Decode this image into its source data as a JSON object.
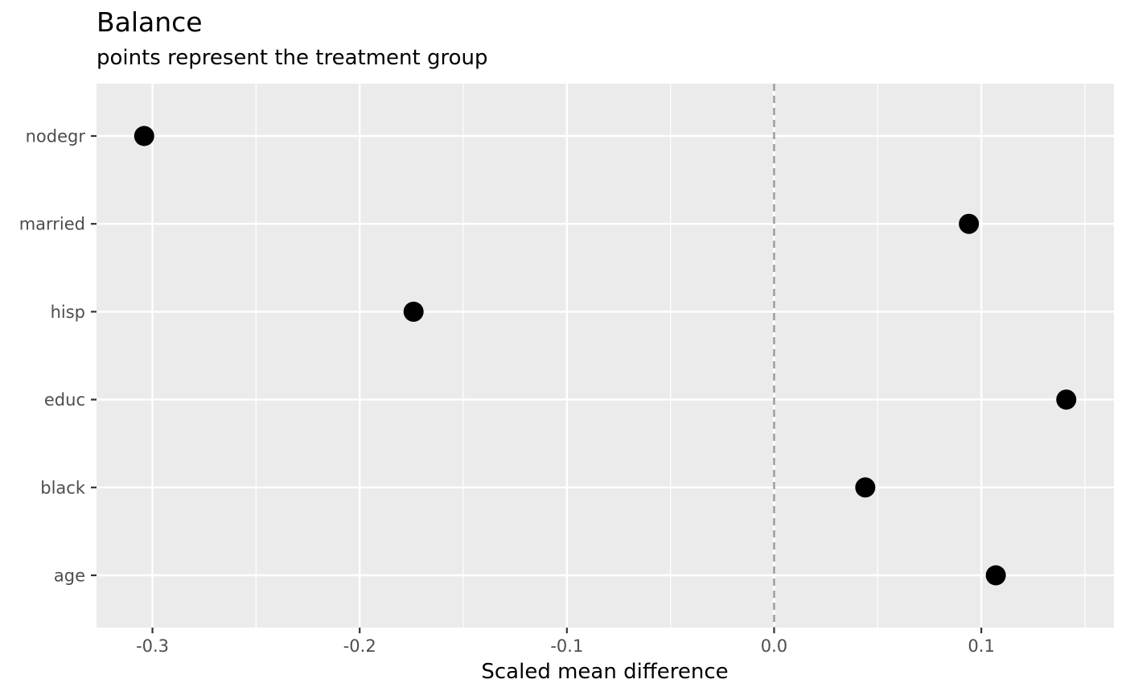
{
  "chart_data": {
    "type": "scatter",
    "title": "Balance",
    "subtitle": "points represent the treatment group",
    "xlabel": "Scaled mean difference",
    "ylabel": "",
    "xlim": [
      -0.327,
      0.164
    ],
    "x_ticks": [
      -0.3,
      -0.2,
      -0.1,
      0.0,
      0.1
    ],
    "x_tick_labels": [
      "-0.3",
      "-0.2",
      "-0.1",
      "0.0",
      "0.1"
    ],
    "categories": [
      "nodegr",
      "married",
      "hisp",
      "educ",
      "black",
      "age"
    ],
    "values": [
      -0.304,
      0.094,
      -0.174,
      0.141,
      0.044,
      0.107
    ],
    "reference_line": {
      "x": 0.0,
      "style": "dashed"
    },
    "grid": true,
    "legend": "none",
    "colors": {
      "panel_background": "#ebebeb",
      "grid": "#ffffff",
      "point": "#000000",
      "reference_line": "#999999",
      "axis_text": "#4d4d4d",
      "tick": "#333333"
    }
  }
}
